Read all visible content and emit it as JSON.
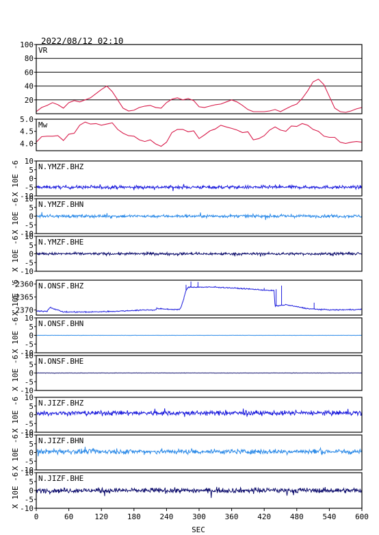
{
  "chart_data": {
    "type": "line",
    "title": "2022/08/12 02:10",
    "xlabel": "SEC",
    "xlim": [
      0,
      600
    ],
    "xticks": [
      "0",
      "60",
      "120",
      "180",
      "240",
      "300",
      "360",
      "420",
      "480",
      "540",
      "600"
    ],
    "panels": [
      {
        "name": "VR",
        "ylabel": "",
        "ylim": [
          0,
          100
        ],
        "yticks": [
          "20",
          "40",
          "60",
          "80",
          "100"
        ],
        "grid": true,
        "color": "#d81b4a",
        "x": [
          0,
          10,
          20,
          30,
          40,
          50,
          60,
          70,
          80,
          90,
          100,
          110,
          120,
          130,
          140,
          150,
          160,
          170,
          180,
          190,
          200,
          210,
          220,
          230,
          240,
          250,
          260,
          270,
          280,
          290,
          300,
          310,
          320,
          330,
          340,
          350,
          360,
          370,
          380,
          390,
          400,
          410,
          420,
          430,
          440,
          450,
          460,
          470,
          480,
          490,
          500,
          510,
          520,
          530,
          540,
          550,
          560,
          570,
          580,
          590,
          600
        ],
        "values": [
          3,
          9,
          12,
          16,
          13,
          8,
          16,
          19,
          17,
          20,
          23,
          29,
          35,
          40,
          32,
          20,
          8,
          4,
          5,
          9,
          11,
          12,
          9,
          8,
          16,
          21,
          23,
          20,
          22,
          19,
          10,
          9,
          11,
          13,
          14,
          17,
          20,
          17,
          12,
          6,
          3,
          3,
          3,
          4,
          6,
          3,
          7,
          11,
          14,
          22,
          33,
          46,
          50,
          42,
          25,
          8,
          3,
          2,
          4,
          7,
          9
        ]
      },
      {
        "name": "Mw",
        "ylabel": "",
        "ylim": [
          3.7,
          5.0
        ],
        "yticks": [
          "4.0",
          "4.5",
          "5.0"
        ],
        "grid": false,
        "color": "#d81b4a",
        "x": [
          0,
          10,
          20,
          30,
          40,
          50,
          60,
          70,
          80,
          90,
          100,
          110,
          120,
          130,
          140,
          150,
          160,
          170,
          180,
          190,
          200,
          210,
          220,
          230,
          240,
          250,
          260,
          270,
          280,
          290,
          300,
          310,
          320,
          330,
          340,
          350,
          360,
          370,
          380,
          390,
          400,
          410,
          420,
          430,
          440,
          450,
          460,
          470,
          480,
          490,
          500,
          510,
          520,
          530,
          540,
          550,
          560,
          570,
          580,
          590,
          600
        ],
        "values": [
          4.05,
          4.28,
          4.3,
          4.3,
          4.32,
          4.12,
          4.38,
          4.42,
          4.75,
          4.88,
          4.8,
          4.82,
          4.75,
          4.8,
          4.85,
          4.58,
          4.42,
          4.32,
          4.3,
          4.15,
          4.08,
          4.15,
          3.98,
          3.88,
          4.05,
          4.45,
          4.58,
          4.58,
          4.48,
          4.52,
          4.2,
          4.35,
          4.52,
          4.6,
          4.75,
          4.68,
          4.62,
          4.55,
          4.45,
          4.48,
          4.15,
          4.2,
          4.32,
          4.55,
          4.68,
          4.55,
          4.5,
          4.72,
          4.7,
          4.82,
          4.75,
          4.58,
          4.5,
          4.3,
          4.25,
          4.25,
          4.05,
          4.0,
          4.05,
          4.08,
          4.05
        ]
      },
      {
        "name": "N.YMZF.BHZ",
        "ylabel": "X 10E -6",
        "ylim": [
          -10,
          10
        ],
        "yticks": [
          "-10",
          "-5",
          "0",
          "5",
          "10"
        ],
        "grid": false,
        "color": "#1a1adc",
        "kind": "noise",
        "baseline": -5,
        "amplitude": 1.0
      },
      {
        "name": "N.YMZF.BHN",
        "ylabel": "X 10E -6",
        "ylim": [
          -10,
          10
        ],
        "yticks": [
          "-10",
          "-5",
          "0",
          "5",
          "10"
        ],
        "grid": false,
        "color": "#2f8ce8",
        "kind": "noise",
        "baseline": 0,
        "amplitude": 0.9
      },
      {
        "name": "N.YMZF.BHE",
        "ylabel": "X 10E -6",
        "ylim": [
          -10,
          10
        ],
        "yticks": [
          "-10",
          "-5",
          "0",
          "5",
          "10"
        ],
        "grid": false,
        "color": "#10106e",
        "kind": "noise",
        "baseline": 0,
        "amplitude": 0.8
      },
      {
        "name": "N.ONSF.BHZ",
        "ylabel": "X 10E -6",
        "ylim": [
          -2372,
          -2358.5
        ],
        "yticks": [
          "-2370",
          "-2365",
          "-2360"
        ],
        "grid": false,
        "color": "#1a1adc",
        "kind": "step",
        "x": [
          0,
          20,
          25,
          50,
          100,
          150,
          200,
          220,
          222,
          250,
          265,
          270,
          275,
          280,
          300,
          330,
          360,
          400,
          430,
          438,
          440,
          460,
          500,
          520,
          550,
          600
        ],
        "values": [
          -2370.5,
          -2370.5,
          -2369,
          -2370.8,
          -2370.8,
          -2370.5,
          -2370,
          -2370,
          -2369.5,
          -2369.8,
          -2369.8,
          -2367,
          -2363,
          -2361.2,
          -2361.2,
          -2361.2,
          -2361.5,
          -2362,
          -2362.5,
          -2362.5,
          -2368.5,
          -2368,
          -2369.5,
          -2369.8,
          -2370,
          -2369.8
        ],
        "amplitude": 0.35,
        "spikes": [
          [
            30,
            -2369.2
          ],
          [
            222,
            -2369.0
          ],
          [
            270,
            -2366.8
          ],
          [
            276,
            -2360.3
          ],
          [
            285,
            -2359.0
          ],
          [
            298,
            -2359.2
          ],
          [
            330,
            -2360.8
          ],
          [
            420,
            -2361.5
          ],
          [
            442,
            -2362.0
          ],
          [
            452,
            -2360.6
          ],
          [
            512,
            -2367.2
          ]
        ]
      },
      {
        "name": "N.ONSF.BHN",
        "ylabel": "X 10E -6",
        "ylim": [
          -10,
          10
        ],
        "yticks": [
          "-10",
          "-5",
          "0",
          "5",
          "10"
        ],
        "grid": false,
        "color": "#2f8ce8",
        "kind": "noise",
        "baseline": 0,
        "amplitude": 0.05
      },
      {
        "name": "N.ONSF.BHE",
        "ylabel": "X 10E -6",
        "ylim": [
          -10,
          10
        ],
        "yticks": [
          "-10",
          "-5",
          "0",
          "5",
          "10"
        ],
        "grid": false,
        "color": "#10106e",
        "kind": "noise",
        "baseline": 0,
        "amplitude": 0.08
      },
      {
        "name": "N.JIZF.BHZ",
        "ylabel": "X 10E -6",
        "ylim": [
          -10,
          10
        ],
        "yticks": [
          "-10",
          "-5",
          "0",
          "5",
          "10"
        ],
        "grid": false,
        "color": "#1a1adc",
        "kind": "noise",
        "baseline": 1,
        "amplitude": 1.4
      },
      {
        "name": "N.JIZF.BHN",
        "ylabel": "X 10E -6",
        "ylim": [
          -10,
          10
        ],
        "yticks": [
          "-10",
          "-5",
          "0",
          "5",
          "10"
        ],
        "grid": false,
        "color": "#2f8ce8",
        "kind": "noise",
        "baseline": 0.5,
        "amplitude": 1.5
      },
      {
        "name": "N.JIZF.BHE",
        "ylabel": "X 10E -6",
        "ylim": [
          -10,
          10
        ],
        "yticks": [
          "-10",
          "-5",
          "0",
          "5",
          "10"
        ],
        "grid": false,
        "color": "#10106e",
        "kind": "noise",
        "baseline": 0,
        "amplitude": 1.5
      }
    ]
  }
}
